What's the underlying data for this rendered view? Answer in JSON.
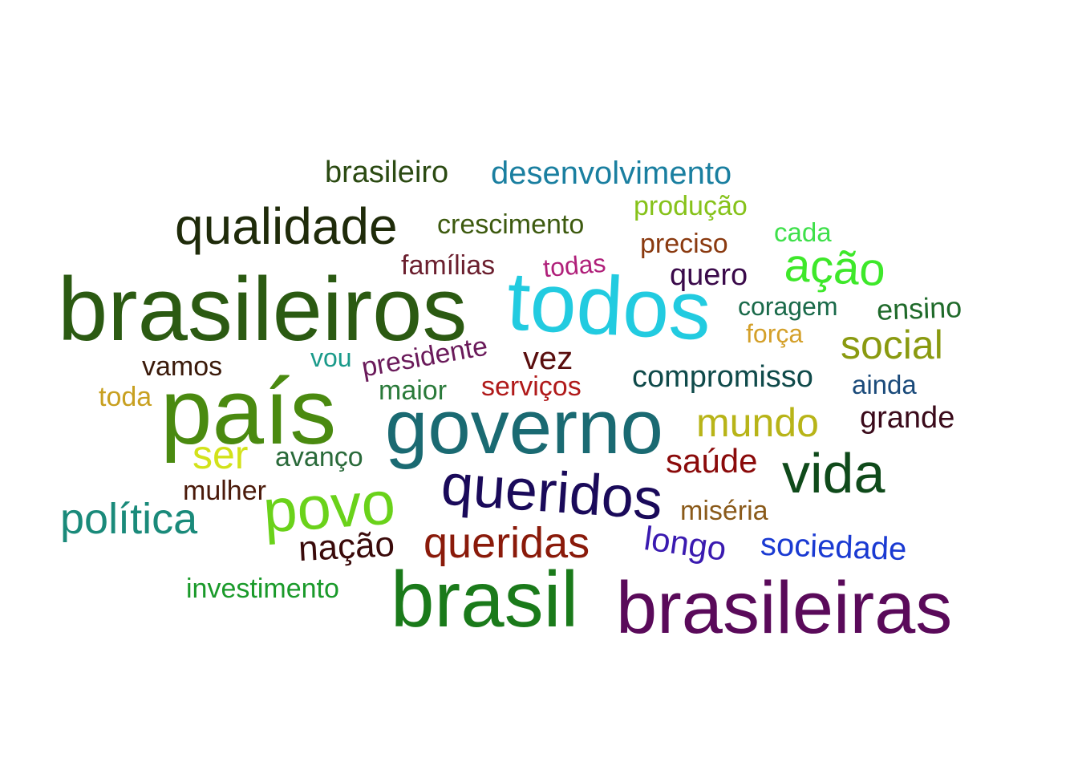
{
  "words": [
    {
      "text": "brasileiro",
      "color": "#2b4a12"
    },
    {
      "text": "desenvolvimento",
      "color": "#1a7fa0"
    },
    {
      "text": "qualidade",
      "color": "#1f2b0a"
    },
    {
      "text": "crescimento",
      "color": "#3d5a0f"
    },
    {
      "text": "produção",
      "color": "#86c21a"
    },
    {
      "text": "cada",
      "color": "#3ee04a"
    },
    {
      "text": "preciso",
      "color": "#8a3a10"
    },
    {
      "text": "famílias",
      "color": "#6b1f2e"
    },
    {
      "text": "todas",
      "color": "#b0207a"
    },
    {
      "text": "ação",
      "color": "#3ee82a"
    },
    {
      "text": "quero",
      "color": "#3a0a4a"
    },
    {
      "text": "brasileiros",
      "color": "#2b5a12"
    },
    {
      "text": "todos",
      "color": "#22cbe0"
    },
    {
      "text": "coragem",
      "color": "#1a6a4a"
    },
    {
      "text": "ensino",
      "color": "#1f6a2a"
    },
    {
      "text": "força",
      "color": "#d4a02a"
    },
    {
      "text": "social",
      "color": "#8a9a10"
    },
    {
      "text": "vez",
      "color": "#5a0e0e"
    },
    {
      "text": "vamos",
      "color": "#3a1a0a"
    },
    {
      "text": "vou",
      "color": "#1a9a8a"
    },
    {
      "text": "presidente",
      "color": "#6a1a5a"
    },
    {
      "text": "compromisso",
      "color": "#0f4a4a"
    },
    {
      "text": "ainda",
      "color": "#1a4a7a"
    },
    {
      "text": "toda",
      "color": "#c8a020"
    },
    {
      "text": "país",
      "color": "#4a8a10"
    },
    {
      "text": "maior",
      "color": "#2a7a3a"
    },
    {
      "text": "serviços",
      "color": "#b01a1a"
    },
    {
      "text": "governo",
      "color": "#1a6a72"
    },
    {
      "text": "mundo",
      "color": "#b8b418"
    },
    {
      "text": "grande",
      "color": "#3a0a1a"
    },
    {
      "text": "ser",
      "color": "#d2e21a"
    },
    {
      "text": "avanço",
      "color": "#2a6a3a"
    },
    {
      "text": "saúde",
      "color": "#8a0a0a"
    },
    {
      "text": "vida",
      "color": "#0f4a1a"
    },
    {
      "text": "mulher",
      "color": "#4a1a0a"
    },
    {
      "text": "queridos",
      "color": "#1a0a5a"
    },
    {
      "text": "miséria",
      "color": "#8a5a1a"
    },
    {
      "text": "política",
      "color": "#1a8a7a"
    },
    {
      "text": "povo",
      "color": "#6ad21a"
    },
    {
      "text": "nação",
      "color": "#3a0a0a"
    },
    {
      "text": "queridas",
      "color": "#8a1a0a"
    },
    {
      "text": "longo",
      "color": "#3a1ab0"
    },
    {
      "text": "sociedade",
      "color": "#1a3ad2"
    },
    {
      "text": "investimento",
      "color": "#1a9a2a"
    },
    {
      "text": "brasil",
      "color": "#1a7a1a"
    },
    {
      "text": "brasileiras",
      "color": "#5a0a5a"
    }
  ]
}
